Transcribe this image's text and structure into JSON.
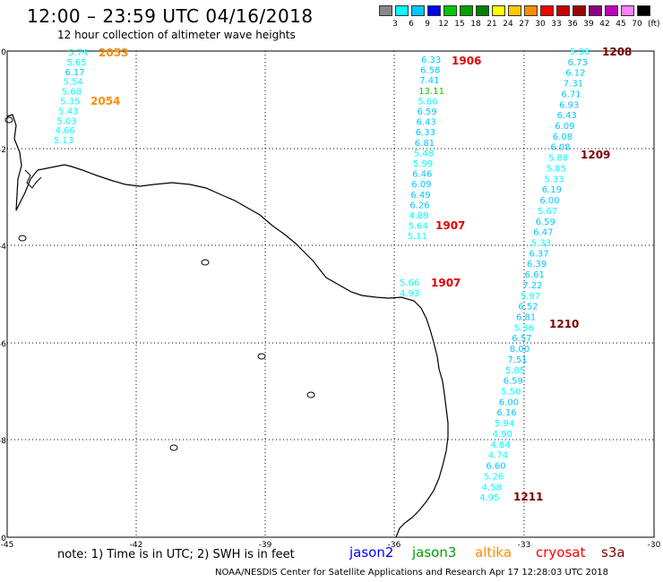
{
  "header": {
    "title": "12:00 – 23:59 UTC 04/16/2018",
    "subtitle": "12 hour collection of altimeter wave heights"
  },
  "legend": {
    "colors": [
      "#888888",
      "#00ffff",
      "#00c8ff",
      "#0000ff",
      "#00c800",
      "#00a000",
      "#008000",
      "#ffff00",
      "#ffc800",
      "#ff8c00",
      "#ff0000",
      "#c80000",
      "#a00000",
      "#8b0080",
      "#c000c0",
      "#ff80ff",
      "#000000"
    ],
    "ticks": [
      "3",
      "6",
      "9",
      "12",
      "15",
      "18",
      "21",
      "24",
      "27",
      "30",
      "33",
      "36",
      "39",
      "42",
      "45",
      "70"
    ],
    "unit": "(ft)"
  },
  "axes": {
    "lon_ticks": [
      "-45",
      "-42",
      "-39",
      "-36",
      "-33",
      "-30"
    ],
    "lat_ticks": [
      "0",
      "-2",
      "-4",
      "-6",
      "-8",
      "-10"
    ]
  },
  "tracks": [
    {
      "values": [
        "5.74",
        "5.65",
        "6.17",
        "5.54",
        "5.68",
        "5.35",
        "5.43",
        "5.03",
        "4.66",
        "5.13"
      ]
    },
    {
      "values": [
        "6.33",
        "6.58",
        "7.41",
        "13.11",
        "5.66",
        "6.59",
        "6.43",
        "6.33",
        "6.81",
        "5.48",
        "5.99",
        "6.46",
        "6.09",
        "6.49",
        "6.26",
        "4.89",
        "5.64",
        "5.11"
      ]
    },
    {
      "values": [
        "5.66",
        "4.93"
      ]
    },
    {
      "values": [
        "5.98",
        "6.73",
        "6.12",
        "7.31",
        "6.71",
        "6.93",
        "6.43",
        "6.09",
        "6.08",
        "6.08",
        "5.88",
        "5.85",
        "5.33",
        "6.19",
        "6.00",
        "5.67",
        "6.59",
        "6.47",
        "5.33",
        "6.37",
        "6.39",
        "6.61",
        "7.22",
        "5.97",
        "6.52",
        "6.81",
        "5.36",
        "6.57",
        "8.00",
        "7.51",
        "5.85",
        "6.59",
        "5.50",
        "6.00",
        "6.16",
        "5.94",
        "4.90",
        "4.84",
        "4.74",
        "6.60",
        "5.26",
        "4.58",
        "4.95"
      ]
    }
  ],
  "pass_labels": [
    {
      "text": "2053",
      "color": "#ff8c00"
    },
    {
      "text": "2054",
      "color": "#ff8c00"
    },
    {
      "text": "1906",
      "color": "#e00000"
    },
    {
      "text": "1907",
      "color": "#e00000"
    },
    {
      "text": "1907",
      "color": "#e00000"
    },
    {
      "text": "1208",
      "color": "#800000"
    },
    {
      "text": "1209",
      "color": "#800000"
    },
    {
      "text": "1210",
      "color": "#800000"
    },
    {
      "text": "1211",
      "color": "#800000"
    }
  ],
  "note": "note: 1) Time is in UTC; 2) SWH is in feet",
  "satellites": [
    {
      "name": "jason2",
      "color": "#0000ff"
    },
    {
      "name": "jason3",
      "color": "#00a000"
    },
    {
      "name": "altika",
      "color": "#ff8c00"
    },
    {
      "name": "cryosat",
      "color": "#ff0000"
    },
    {
      "name": "s3a",
      "color": "#800000"
    }
  ],
  "footer": "NOAA/NESDIS Center for Satellite Applications and Research    Apr 17 12:28:03 UTC 2018"
}
